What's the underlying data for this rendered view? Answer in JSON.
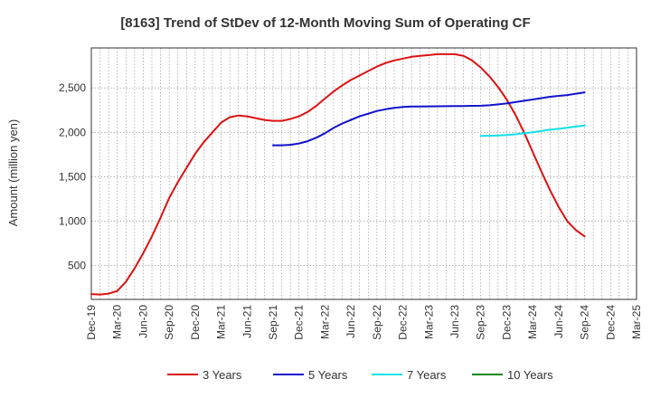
{
  "chart_data": {
    "type": "line",
    "title": "[8163]  Trend of StDev of 12-Month Moving Sum of Operating CF",
    "xlabel": "",
    "ylabel": "Amount (million yen)",
    "x_ticks": [
      "Dec-19",
      "Mar-20",
      "Jun-20",
      "Sep-20",
      "Dec-20",
      "Mar-21",
      "Jun-21",
      "Sep-21",
      "Dec-21",
      "Mar-22",
      "Jun-22",
      "Sep-22",
      "Dec-22",
      "Mar-23",
      "Jun-23",
      "Sep-23",
      "Dec-23",
      "Mar-24",
      "Jun-24",
      "Sep-24",
      "Dec-24",
      "Mar-25"
    ],
    "y_ticks": [
      500,
      1000,
      1500,
      2000,
      2500
    ],
    "y_tick_labels": [
      "500",
      "1,000",
      "1,500",
      "2,000",
      "2,500"
    ],
    "ylim": [
      120,
      2950
    ],
    "grid": true,
    "legend_position": "bottom",
    "series": [
      {
        "name": "3 Years",
        "color": "#dd1111",
        "points": [
          [
            "Dec-19",
            180
          ],
          [
            "Jan-20",
            175
          ],
          [
            "Feb-20",
            185
          ],
          [
            "Mar-20",
            215
          ],
          [
            "Apr-20",
            320
          ],
          [
            "May-20",
            470
          ],
          [
            "Jun-20",
            640
          ],
          [
            "Jul-20",
            830
          ],
          [
            "Aug-20",
            1040
          ],
          [
            "Sep-20",
            1260
          ],
          [
            "Oct-20",
            1440
          ],
          [
            "Nov-20",
            1600
          ],
          [
            "Dec-20",
            1760
          ],
          [
            "Jan-21",
            1890
          ],
          [
            "Feb-21",
            2000
          ],
          [
            "Mar-21",
            2110
          ],
          [
            "Apr-21",
            2170
          ],
          [
            "May-21",
            2190
          ],
          [
            "Jun-21",
            2180
          ],
          [
            "Jul-21",
            2160
          ],
          [
            "Aug-21",
            2140
          ],
          [
            "Sep-21",
            2130
          ],
          [
            "Oct-21",
            2130
          ],
          [
            "Nov-21",
            2150
          ],
          [
            "Dec-21",
            2180
          ],
          [
            "Jan-22",
            2230
          ],
          [
            "Feb-22",
            2300
          ],
          [
            "Mar-22",
            2380
          ],
          [
            "Apr-22",
            2460
          ],
          [
            "May-22",
            2530
          ],
          [
            "Jun-22",
            2590
          ],
          [
            "Jul-22",
            2640
          ],
          [
            "Aug-22",
            2690
          ],
          [
            "Sep-22",
            2740
          ],
          [
            "Oct-22",
            2780
          ],
          [
            "Nov-22",
            2810
          ],
          [
            "Dec-22",
            2830
          ],
          [
            "Jan-23",
            2850
          ],
          [
            "Feb-23",
            2860
          ],
          [
            "Mar-23",
            2870
          ],
          [
            "Apr-23",
            2880
          ],
          [
            "May-23",
            2880
          ],
          [
            "Jun-23",
            2880
          ],
          [
            "Jul-23",
            2860
          ],
          [
            "Aug-23",
            2810
          ],
          [
            "Sep-23",
            2730
          ],
          [
            "Oct-23",
            2630
          ],
          [
            "Nov-23",
            2510
          ],
          [
            "Dec-23",
            2370
          ],
          [
            "Jan-24",
            2200
          ],
          [
            "Feb-24",
            2000
          ],
          [
            "Mar-24",
            1780
          ],
          [
            "Apr-24",
            1560
          ],
          [
            "May-24",
            1350
          ],
          [
            "Jun-24",
            1160
          ],
          [
            "Jul-24",
            1000
          ],
          [
            "Aug-24",
            900
          ],
          [
            "Sep-24",
            830
          ]
        ]
      },
      {
        "name": "5 Years",
        "color": "#1111cc",
        "points": [
          [
            "Sep-21",
            1855
          ],
          [
            "Oct-21",
            1855
          ],
          [
            "Nov-21",
            1860
          ],
          [
            "Dec-21",
            1875
          ],
          [
            "Jan-22",
            1900
          ],
          [
            "Feb-22",
            1940
          ],
          [
            "Mar-22",
            1990
          ],
          [
            "Apr-22",
            2050
          ],
          [
            "May-22",
            2100
          ],
          [
            "Jun-22",
            2140
          ],
          [
            "Jul-22",
            2180
          ],
          [
            "Aug-22",
            2210
          ],
          [
            "Sep-22",
            2240
          ],
          [
            "Oct-22",
            2260
          ],
          [
            "Nov-22",
            2275
          ],
          [
            "Dec-22",
            2285
          ],
          [
            "Jan-23",
            2290
          ],
          [
            "Feb-23",
            2290
          ],
          [
            "Mar-23",
            2292
          ],
          [
            "Apr-23",
            2293
          ],
          [
            "May-23",
            2294
          ],
          [
            "Jun-23",
            2295
          ],
          [
            "Jul-23",
            2296
          ],
          [
            "Aug-23",
            2298
          ],
          [
            "Sep-23",
            2300
          ],
          [
            "Oct-23",
            2305
          ],
          [
            "Nov-23",
            2315
          ],
          [
            "Dec-23",
            2325
          ],
          [
            "Jan-24",
            2340
          ],
          [
            "Feb-24",
            2355
          ],
          [
            "Mar-24",
            2370
          ],
          [
            "Apr-24",
            2385
          ],
          [
            "May-24",
            2400
          ],
          [
            "Jun-24",
            2410
          ],
          [
            "Jul-24",
            2420
          ],
          [
            "Aug-24",
            2435
          ],
          [
            "Sep-24",
            2450
          ]
        ]
      },
      {
        "name": "7 Years",
        "color": "#11e0e8",
        "points": [
          [
            "Sep-23",
            1960
          ],
          [
            "Oct-23",
            1962
          ],
          [
            "Nov-23",
            1965
          ],
          [
            "Dec-23",
            1970
          ],
          [
            "Jan-24",
            1978
          ],
          [
            "Feb-24",
            1990
          ],
          [
            "Mar-24",
            2000
          ],
          [
            "Apr-24",
            2015
          ],
          [
            "May-24",
            2030
          ],
          [
            "Jun-24",
            2040
          ],
          [
            "Jul-24",
            2052
          ],
          [
            "Aug-24",
            2065
          ],
          [
            "Sep-24",
            2078
          ]
        ]
      },
      {
        "name": "10 Years",
        "color": "#118811",
        "points": []
      }
    ]
  }
}
